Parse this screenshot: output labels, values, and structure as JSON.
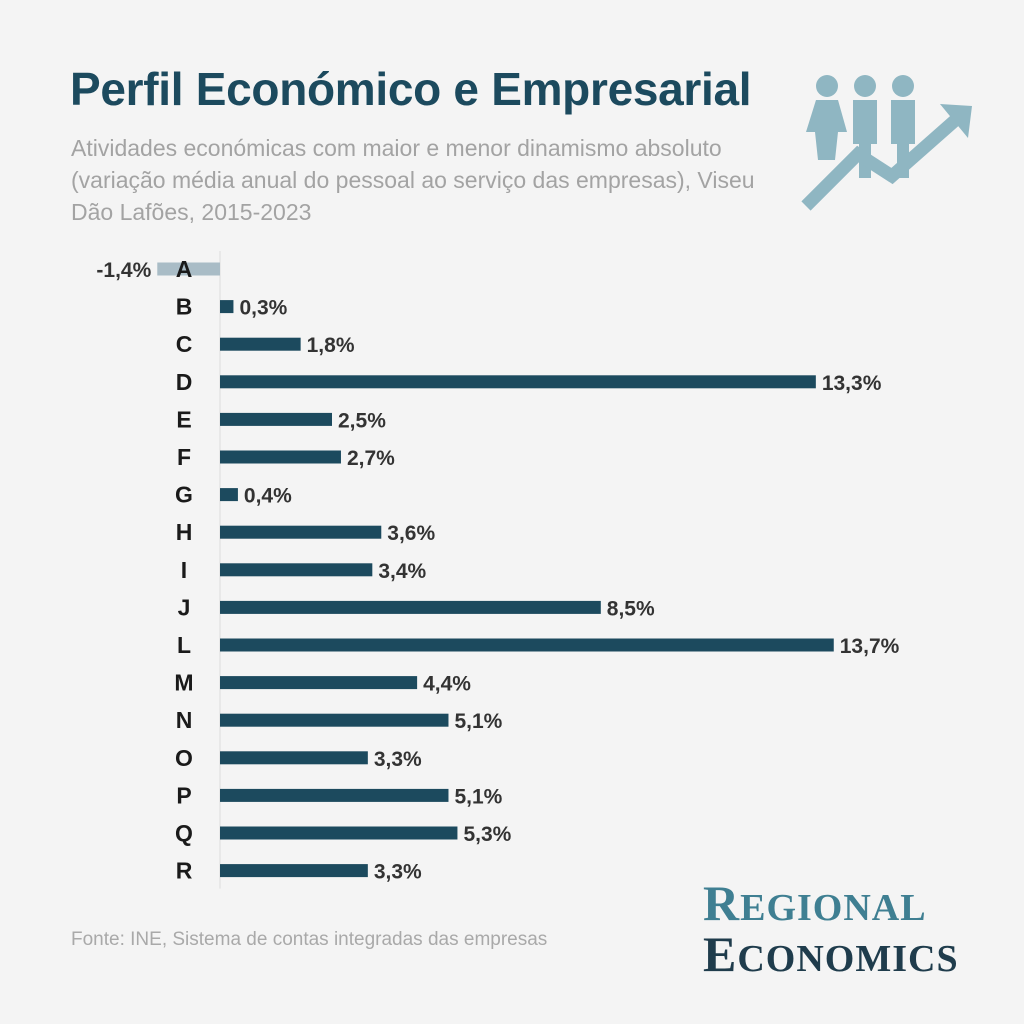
{
  "header": {
    "title": "Perfil Económico e Empresarial",
    "subtitle": "Atividades económicas com maior e menor dinamismo absoluto (variação média anual do pessoal ao serviço das empresas), Viseu Dão Lafões, 2015-2023",
    "icon": "people-growth-arrow-icon"
  },
  "chart_data": {
    "type": "bar",
    "orientation": "horizontal",
    "categories": [
      "A",
      "B",
      "C",
      "D",
      "E",
      "F",
      "G",
      "H",
      "I",
      "J",
      "L",
      "M",
      "N",
      "O",
      "P",
      "Q",
      "R"
    ],
    "values": [
      -1.4,
      0.3,
      1.8,
      13.3,
      2.5,
      2.7,
      0.4,
      3.6,
      3.4,
      8.5,
      13.7,
      4.4,
      5.1,
      3.3,
      5.1,
      5.3,
      3.3
    ],
    "labels": [
      "-1,4%",
      "0,3%",
      "1,8%",
      "13,3%",
      "2,5%",
      "2,7%",
      "0,4%",
      "3,6%",
      "3,4%",
      "8,5%",
      "13,7%",
      "4,4%",
      "5,1%",
      "3,3%",
      "5,1%",
      "5,3%",
      "3,3%"
    ],
    "colors": {
      "positive": "#1c4a5e",
      "negative": "#a9bcc6"
    },
    "grid": false
  },
  "footer": {
    "source": "Fonte: INE, Sistema de contas integradas das empresas"
  },
  "brand": {
    "line1_initial": "R",
    "line1_rest": "EGIONAL",
    "line2_initial": "E",
    "line2_rest": "CONOMICS"
  }
}
